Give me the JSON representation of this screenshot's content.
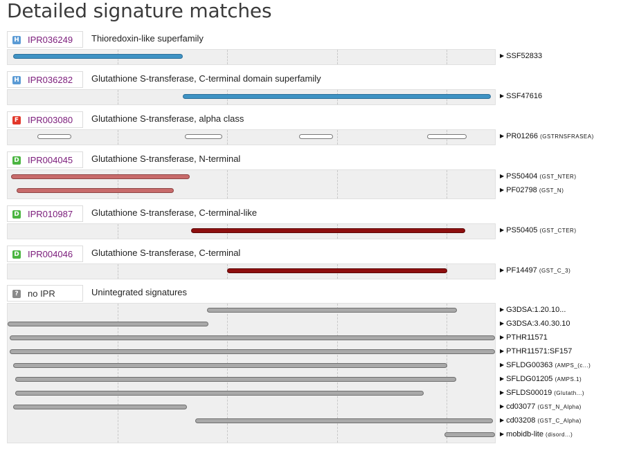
{
  "page": {
    "title": "Detailed signature matches"
  },
  "entries": [
    {
      "type_letter": "H",
      "badge_color": "#5b9bd5",
      "accession": "IPR036249",
      "description": "Thioredoxin-like superfamily",
      "signatures": [
        {
          "label": "SSF52833",
          "detail": "",
          "style": "blue",
          "fragments": [
            {
              "start": 0.012,
              "end": 0.359
            }
          ]
        }
      ]
    },
    {
      "type_letter": "H",
      "badge_color": "#5b9bd5",
      "accession": "IPR036282",
      "description": "Glutathione S-transferase, C-terminal domain superfamily",
      "signatures": [
        {
          "label": "SSF47616",
          "detail": "",
          "style": "blue",
          "fragments": [
            {
              "start": 0.359,
              "end": 0.989
            }
          ]
        }
      ]
    },
    {
      "type_letter": "F",
      "badge_color": "#e2372a",
      "accession": "IPR003080",
      "description": "Glutathione S-transferase, alpha class",
      "signatures": [
        {
          "label": "PR01266",
          "detail": "(GSTRNSFRASEA)",
          "style": "white",
          "fragments": [
            {
              "start": 0.061,
              "end": 0.131
            },
            {
              "start": 0.363,
              "end": 0.44
            },
            {
              "start": 0.596,
              "end": 0.666
            },
            {
              "start": 0.859,
              "end": 0.94
            }
          ]
        }
      ]
    },
    {
      "type_letter": "D",
      "badge_color": "#4bb541",
      "accession": "IPR004045",
      "description": "Glutathione S-transferase, N-terminal",
      "signatures": [
        {
          "label": "PS50404",
          "detail": "(GST_NTER)",
          "style": "salmon",
          "fragments": [
            {
              "start": 0.007,
              "end": 0.372
            }
          ]
        },
        {
          "label": "PF02798",
          "detail": "(GST_N)",
          "style": "salmon",
          "fragments": [
            {
              "start": 0.019,
              "end": 0.341
            }
          ]
        }
      ]
    },
    {
      "type_letter": "D",
      "badge_color": "#4bb541",
      "accession": "IPR010987",
      "description": "Glutathione S-transferase, C-terminal-like",
      "signatures": [
        {
          "label": "PS50405",
          "detail": "(GST_CTER)",
          "style": "darkred",
          "fragments": [
            {
              "start": 0.376,
              "end": 0.937
            }
          ]
        }
      ]
    },
    {
      "type_letter": "D",
      "badge_color": "#4bb541",
      "accession": "IPR004046",
      "description": "Glutathione S-transferase, C-terminal",
      "signatures": [
        {
          "label": "PF14497",
          "detail": "(GST_C_3)",
          "style": "darkred",
          "fragments": [
            {
              "start": 0.449,
              "end": 0.9
            }
          ]
        }
      ]
    },
    {
      "type_letter": "?",
      "badge_color": "#8a8a8a",
      "accession": "no IPR",
      "plain": true,
      "description": "Unintegrated signatures",
      "signatures": [
        {
          "label": "G3DSA:1.20.10...",
          "detail": "",
          "style": "gray",
          "fragments": [
            {
              "start": 0.408,
              "end": 0.92
            }
          ]
        },
        {
          "label": "G3DSA:3.40.30.10",
          "detail": "",
          "style": "gray",
          "fragments": [
            {
              "start": 0.0,
              "end": 0.411
            }
          ]
        },
        {
          "label": "PTHR11571",
          "detail": "",
          "style": "gray",
          "fragments": [
            {
              "start": 0.004,
              "end": 0.997
            }
          ]
        },
        {
          "label": "PTHR11571:SF157",
          "detail": "",
          "style": "gray",
          "fragments": [
            {
              "start": 0.004,
              "end": 0.997
            }
          ]
        },
        {
          "label": "SFLDG00363",
          "detail": "(AMPS_(c...)",
          "style": "gray",
          "fragments": [
            {
              "start": 0.012,
              "end": 0.9
            }
          ]
        },
        {
          "label": "SFLDG01205",
          "detail": "(AMPS.1)",
          "style": "gray",
          "fragments": [
            {
              "start": 0.016,
              "end": 0.918
            }
          ]
        },
        {
          "label": "SFLDS00019",
          "detail": "(Glutath...)",
          "style": "gray",
          "fragments": [
            {
              "start": 0.016,
              "end": 0.851
            }
          ]
        },
        {
          "label": "cd03077",
          "detail": "(GST_N_Alpha)",
          "style": "gray",
          "fragments": [
            {
              "start": 0.012,
              "end": 0.368
            }
          ]
        },
        {
          "label": "cd03208",
          "detail": "(GST_C_Alpha)",
          "style": "gray",
          "fragments": [
            {
              "start": 0.384,
              "end": 0.993
            }
          ]
        },
        {
          "label": "mobidb-lite",
          "detail": "(disord...)",
          "style": "gray",
          "fragments": [
            {
              "start": 0.894,
              "end": 0.997
            }
          ]
        }
      ]
    }
  ],
  "grid_fractions": [
    0.225,
    0.449,
    0.674,
    0.898
  ]
}
